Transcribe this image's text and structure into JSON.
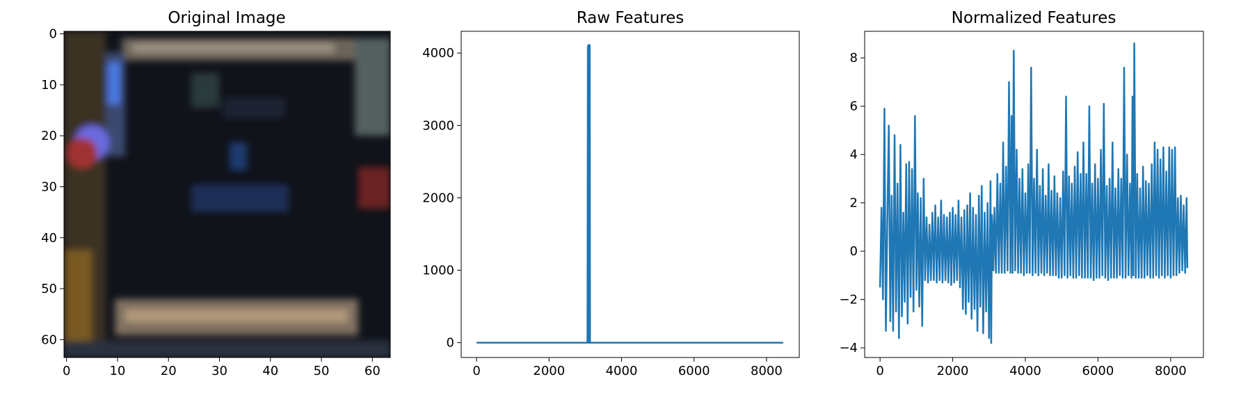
{
  "colors": {
    "series": "#1f77b4",
    "axes": "#000000",
    "background": "#ffffff"
  },
  "chart_data": [
    {
      "type": "image",
      "title": "Original Image",
      "xlim": [
        -0.5,
        63.5
      ],
      "ylim": [
        63.5,
        -0.5
      ],
      "x_ticks": [
        0,
        10,
        20,
        30,
        40,
        50,
        60
      ],
      "y_ticks": [
        0,
        10,
        20,
        30,
        40,
        50,
        60
      ],
      "grid": false
    },
    {
      "type": "line",
      "title": "Raw Features",
      "x_ticks": [
        0,
        2000,
        4000,
        6000,
        8000
      ],
      "y_ticks": [
        0,
        1000,
        2000,
        3000,
        4000
      ],
      "xlim": [
        -424,
        8903
      ],
      "ylim": [
        -205,
        4300
      ],
      "grid": false,
      "series": [
        {
          "values": [
            [
              0,
              0
            ],
            [
              3060,
              0
            ],
            [
              3070,
              4090
            ],
            [
              3075,
              0
            ],
            [
              3082,
              4110
            ],
            [
              3090,
              0
            ],
            [
              3098,
              4050
            ],
            [
              3105,
              0
            ],
            [
              3112,
              4100
            ],
            [
              3118,
              0
            ],
            [
              3123,
              4110
            ],
            [
              3130,
              0
            ],
            [
              8460,
              0
            ]
          ]
        }
      ]
    },
    {
      "type": "line",
      "title": "Normalized Features",
      "x_ticks": [
        0,
        2000,
        4000,
        6000,
        8000
      ],
      "y_ticks": [
        -4,
        -2,
        0,
        2,
        4,
        6,
        8
      ],
      "xlim": [
        -424,
        8903
      ],
      "ylim": [
        -4.4,
        9.1
      ],
      "grid": false,
      "series": [
        {
          "values": [
            [
              0,
              -1.5
            ],
            [
              40,
              1.8
            ],
            [
              80,
              -2.0
            ],
            [
              120,
              5.9
            ],
            [
              160,
              -3.3
            ],
            [
              200,
              1.3
            ],
            [
              240,
              5.2
            ],
            [
              280,
              -2.9
            ],
            [
              320,
              2.3
            ],
            [
              360,
              -3.3
            ],
            [
              400,
              4.8
            ],
            [
              440,
              -2.5
            ],
            [
              480,
              2.8
            ],
            [
              520,
              -3.6
            ],
            [
              560,
              4.4
            ],
            [
              600,
              -2.7
            ],
            [
              640,
              1.6
            ],
            [
              680,
              -2.1
            ],
            [
              720,
              3.6
            ],
            [
              760,
              -3.0
            ],
            [
              800,
              3.7
            ],
            [
              840,
              -1.9
            ],
            [
              880,
              3.4
            ],
            [
              920,
              -2.5
            ],
            [
              960,
              5.6
            ],
            [
              1000,
              -1.6
            ],
            [
              1040,
              2.4
            ],
            [
              1080,
              -2.3
            ],
            [
              1120,
              2.2
            ],
            [
              1160,
              -3.1
            ],
            [
              1200,
              3.0
            ],
            [
              1240,
              -1.2
            ],
            [
              1280,
              1.4
            ],
            [
              1320,
              -1.3
            ],
            [
              1360,
              1.1
            ],
            [
              1400,
              -1.2
            ],
            [
              1440,
              1.6
            ],
            [
              1480,
              -1.2
            ],
            [
              1520,
              1.9
            ],
            [
              1560,
              -1.3
            ],
            [
              1600,
              1.4
            ],
            [
              1640,
              -1.2
            ],
            [
              1680,
              2.1
            ],
            [
              1720,
              -1.3
            ],
            [
              1760,
              1.5
            ],
            [
              1800,
              -1.2
            ],
            [
              1840,
              1.4
            ],
            [
              1880,
              -1.3
            ],
            [
              1920,
              1.6
            ],
            [
              1960,
              -1.4
            ],
            [
              2000,
              1.8
            ],
            [
              2040,
              -1.3
            ],
            [
              2080,
              1.5
            ],
            [
              2120,
              -1.2
            ],
            [
              2160,
              2.1
            ],
            [
              2200,
              -1.5
            ],
            [
              2240,
              1.4
            ],
            [
              2280,
              -2.4
            ],
            [
              2320,
              1.7
            ],
            [
              2360,
              -2.6
            ],
            [
              2400,
              1.9
            ],
            [
              2440,
              -2.1
            ],
            [
              2480,
              2.4
            ],
            [
              2520,
              -2.8
            ],
            [
              2560,
              1.8
            ],
            [
              2600,
              -2.4
            ],
            [
              2640,
              1.5
            ],
            [
              2680,
              -3.3
            ],
            [
              2720,
              2.3
            ],
            [
              2760,
              -2.3
            ],
            [
              2800,
              2.7
            ],
            [
              2840,
              -3.4
            ],
            [
              2880,
              1.6
            ],
            [
              2920,
              -2.5
            ],
            [
              2960,
              2.0
            ],
            [
              3000,
              -3.6
            ],
            [
              3040,
              2.9
            ],
            [
              3060,
              -3.8
            ],
            [
              3080,
              1.5
            ],
            [
              3100,
              0.9
            ],
            [
              3120,
              -0.8
            ],
            [
              3150,
              1.8
            ],
            [
              3190,
              -0.9
            ],
            [
              3230,
              3.2
            ],
            [
              3270,
              -0.9
            ],
            [
              3310,
              2.8
            ],
            [
              3350,
              -0.9
            ],
            [
              3390,
              4.5
            ],
            [
              3430,
              -0.9
            ],
            [
              3470,
              3.5
            ],
            [
              3510,
              -0.8
            ],
            [
              3550,
              7.0
            ],
            [
              3590,
              -0.9
            ],
            [
              3620,
              5.6
            ],
            [
              3650,
              -0.9
            ],
            [
              3680,
              8.3
            ],
            [
              3720,
              -0.8
            ],
            [
              3760,
              4.2
            ],
            [
              3800,
              -0.9
            ],
            [
              3840,
              3.0
            ],
            [
              3880,
              -0.9
            ],
            [
              3920,
              3.4
            ],
            [
              3960,
              -1.0
            ],
            [
              4000,
              2.4
            ],
            [
              4040,
              -0.9
            ],
            [
              4080,
              3.6
            ],
            [
              4120,
              -0.9
            ],
            [
              4160,
              7.6
            ],
            [
              4200,
              -1.0
            ],
            [
              4240,
              3.0
            ],
            [
              4280,
              -0.9
            ],
            [
              4320,
              4.2
            ],
            [
              4360,
              -1.0
            ],
            [
              4400,
              2.7
            ],
            [
              4440,
              -0.9
            ],
            [
              4480,
              3.4
            ],
            [
              4520,
              -1.0
            ],
            [
              4560,
              2.3
            ],
            [
              4600,
              -0.9
            ],
            [
              4640,
              3.6
            ],
            [
              4680,
              -1.0
            ],
            [
              4720,
              2.5
            ],
            [
              4760,
              -1.0
            ],
            [
              4800,
              3.1
            ],
            [
              4840,
              -1.0
            ],
            [
              4880,
              2.4
            ],
            [
              4920,
              -1.1
            ],
            [
              4960,
              2.2
            ],
            [
              5000,
              -1.1
            ],
            [
              5040,
              3.3
            ],
            [
              5080,
              -1.0
            ],
            [
              5120,
              6.4
            ],
            [
              5160,
              -1.1
            ],
            [
              5200,
              3.1
            ],
            [
              5240,
              -1.0
            ],
            [
              5280,
              2.8
            ],
            [
              5320,
              -1.1
            ],
            [
              5360,
              3.5
            ],
            [
              5400,
              -1.1
            ],
            [
              5440,
              4.1
            ],
            [
              5480,
              -1.0
            ],
            [
              5520,
              3.2
            ],
            [
              5560,
              -1.1
            ],
            [
              5600,
              4.5
            ],
            [
              5640,
              -1.1
            ],
            [
              5680,
              3.2
            ],
            [
              5720,
              -1.1
            ],
            [
              5760,
              6.0
            ],
            [
              5800,
              -1.1
            ],
            [
              5840,
              2.8
            ],
            [
              5880,
              -1.2
            ],
            [
              5920,
              3.6
            ],
            [
              5960,
              -1.1
            ],
            [
              6000,
              3.0
            ],
            [
              6040,
              -1.1
            ],
            [
              6080,
              4.2
            ],
            [
              6120,
              -1.0
            ],
            [
              6160,
              6.1
            ],
            [
              6200,
              -1.1
            ],
            [
              6240,
              2.7
            ],
            [
              6280,
              -1.2
            ],
            [
              6320,
              3.0
            ],
            [
              6360,
              -1.1
            ],
            [
              6400,
              4.5
            ],
            [
              6440,
              -1.1
            ],
            [
              6480,
              2.6
            ],
            [
              6520,
              -1.1
            ],
            [
              6560,
              3.4
            ],
            [
              6600,
              -1.0
            ],
            [
              6640,
              3.0
            ],
            [
              6680,
              -1.1
            ],
            [
              6720,
              7.6
            ],
            [
              6760,
              -1.1
            ],
            [
              6800,
              4.0
            ],
            [
              6840,
              -1.0
            ],
            [
              6880,
              2.8
            ],
            [
              6920,
              -1.1
            ],
            [
              6950,
              6.4
            ],
            [
              6975,
              -1.0
            ],
            [
              7000,
              8.6
            ],
            [
              7040,
              -1.1
            ],
            [
              7080,
              3.2
            ],
            [
              7120,
              -1.1
            ],
            [
              7160,
              2.6
            ],
            [
              7200,
              -1.1
            ],
            [
              7240,
              3.5
            ],
            [
              7280,
              -1.1
            ],
            [
              7320,
              2.9
            ],
            [
              7360,
              -1.0
            ],
            [
              7400,
              2.8
            ],
            [
              7440,
              -1.1
            ],
            [
              7480,
              3.6
            ],
            [
              7520,
              -1.1
            ],
            [
              7560,
              4.5
            ],
            [
              7600,
              -1.0
            ],
            [
              7640,
              4.2
            ],
            [
              7680,
              -1.1
            ],
            [
              7720,
              3.8
            ],
            [
              7760,
              -1.0
            ],
            [
              7800,
              4.3
            ],
            [
              7840,
              -1.1
            ],
            [
              7880,
              3.3
            ],
            [
              7920,
              -1.0
            ],
            [
              7960,
              4.3
            ],
            [
              8000,
              -1.1
            ],
            [
              8040,
              4.2
            ],
            [
              8080,
              -1.0
            ],
            [
              8120,
              4.3
            ],
            [
              8160,
              -1.0
            ],
            [
              8200,
              2.2
            ],
            [
              8240,
              -0.9
            ],
            [
              8280,
              2.3
            ],
            [
              8320,
              -0.8
            ],
            [
              8360,
              1.9
            ],
            [
              8400,
              -0.9
            ],
            [
              8440,
              2.2
            ],
            [
              8460,
              -0.7
            ]
          ]
        }
      ]
    }
  ]
}
